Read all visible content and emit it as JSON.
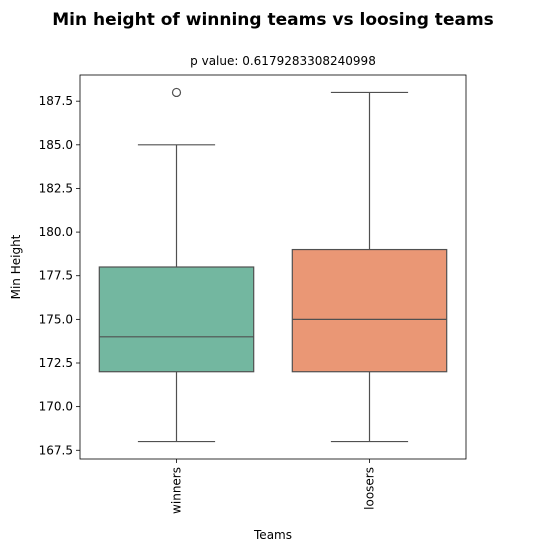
{
  "chart_data": {
    "type": "box",
    "title": "Min height of winning teams vs loosing teams",
    "subtitle": "p value: 0.6179283308240998",
    "xlabel": "Teams",
    "ylabel": "Min Height",
    "categories": [
      "winners",
      "loosers"
    ],
    "ylim": [
      167,
      189
    ],
    "yticks": [
      167.5,
      170.0,
      172.5,
      175.0,
      177.5,
      180.0,
      182.5,
      185.0,
      187.5
    ],
    "ytick_labels": [
      "167.5",
      "170.0",
      "172.5",
      "175.0",
      "177.5",
      "180.0",
      "182.5",
      "185.0",
      "187.5"
    ],
    "boxes": [
      {
        "category": "winners",
        "whisker_low": 168,
        "q1": 172,
        "median": 174,
        "q3": 178,
        "whisker_high": 185,
        "outliers": [
          188
        ],
        "color": "#73b7a0"
      },
      {
        "category": "loosers",
        "whisker_low": 168,
        "q1": 172,
        "median": 175,
        "q3": 179,
        "whisker_high": 188,
        "outliers": [],
        "color": "#ea9775"
      }
    ],
    "grid": false,
    "line_color": "#505050"
  }
}
